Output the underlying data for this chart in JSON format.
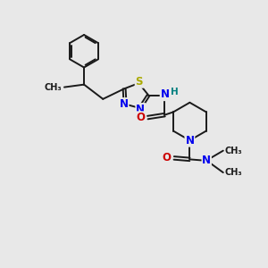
{
  "bg_color": "#e8e8e8",
  "bond_color": "#1a1a1a",
  "bond_width": 1.4,
  "N_color": "#0000ee",
  "S_color": "#aaaa00",
  "O_color": "#cc0000",
  "H_color": "#008080",
  "font_size": 8.5,
  "fig_width": 3.0,
  "fig_height": 3.0,
  "dpi": 100,
  "xlim": [
    0,
    10
  ],
  "ylim": [
    0,
    10
  ]
}
